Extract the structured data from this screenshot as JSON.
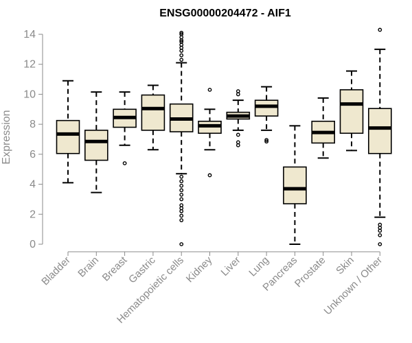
{
  "chart_data": {
    "type": "box",
    "title": "ENSG00000204472 - AIF1",
    "xlabel": "",
    "ylabel": "Expression",
    "ylim": [
      0,
      14
    ],
    "yticks": [
      0,
      2,
      4,
      6,
      8,
      10,
      12,
      14
    ],
    "box_fill": "#efe8cf",
    "categories": [
      "Bladder",
      "Brain",
      "Breast",
      "Gastric",
      "Hematopoietic cells",
      "Kidney",
      "Liver",
      "Lung",
      "Pancreas",
      "Prostate",
      "Skin",
      "Unknown / Other"
    ],
    "boxes": [
      {
        "label": "Bladder",
        "whisker_low": 4.1,
        "q1": 6.05,
        "median": 7.35,
        "q3": 8.25,
        "whisker_high": 10.9,
        "outliers": []
      },
      {
        "label": "Brain",
        "whisker_low": 3.45,
        "q1": 5.6,
        "median": 6.85,
        "q3": 7.6,
        "whisker_high": 10.15,
        "outliers": []
      },
      {
        "label": "Breast",
        "whisker_low": 6.6,
        "q1": 7.8,
        "median": 8.45,
        "q3": 9.0,
        "whisker_high": 10.15,
        "outliers": [
          5.4
        ]
      },
      {
        "label": "Gastric",
        "whisker_low": 6.3,
        "q1": 7.6,
        "median": 9.05,
        "q3": 9.95,
        "whisker_high": 10.6,
        "outliers": []
      },
      {
        "label": "Hematopoietic cells",
        "whisker_low": 4.7,
        "q1": 7.5,
        "median": 8.35,
        "q3": 9.35,
        "whisker_high": 12.1,
        "outliers": [
          0.0,
          1.6,
          1.9,
          2.2,
          2.4,
          2.6,
          3.0,
          3.3,
          3.6,
          3.9,
          4.2,
          4.5,
          12.3,
          12.6,
          12.9,
          13.1,
          13.3,
          13.5,
          13.6,
          13.8,
          14.0,
          14.1
        ]
      },
      {
        "label": "Kidney",
        "whisker_low": 6.3,
        "q1": 7.4,
        "median": 7.9,
        "q3": 8.2,
        "whisker_high": 9.0,
        "outliers": [
          4.6,
          10.3
        ]
      },
      {
        "label": "Liver",
        "whisker_low": 7.6,
        "q1": 8.35,
        "median": 8.55,
        "q3": 8.8,
        "whisker_high": 9.6,
        "outliers": [
          6.6,
          6.8,
          7.3,
          10.0,
          10.2
        ]
      },
      {
        "label": "Lung",
        "whisker_low": 7.6,
        "q1": 8.55,
        "median": 9.2,
        "q3": 9.6,
        "whisker_high": 10.5,
        "outliers": [
          6.85,
          6.95
        ]
      },
      {
        "label": "Pancreas",
        "whisker_low": 0.0,
        "q1": 2.7,
        "median": 3.7,
        "q3": 5.15,
        "whisker_high": 7.9,
        "outliers": []
      },
      {
        "label": "Prostate",
        "whisker_low": 5.75,
        "q1": 6.75,
        "median": 7.45,
        "q3": 8.2,
        "whisker_high": 9.75,
        "outliers": []
      },
      {
        "label": "Skin",
        "whisker_low": 6.25,
        "q1": 7.4,
        "median": 9.35,
        "q3": 10.3,
        "whisker_high": 11.55,
        "outliers": []
      },
      {
        "label": "Unknown / Other",
        "whisker_low": 1.8,
        "q1": 6.05,
        "median": 7.75,
        "q3": 9.05,
        "whisker_high": 13.0,
        "outliers": [
          0.0,
          0.6,
          0.9,
          1.1,
          1.3,
          14.3
        ]
      }
    ]
  }
}
